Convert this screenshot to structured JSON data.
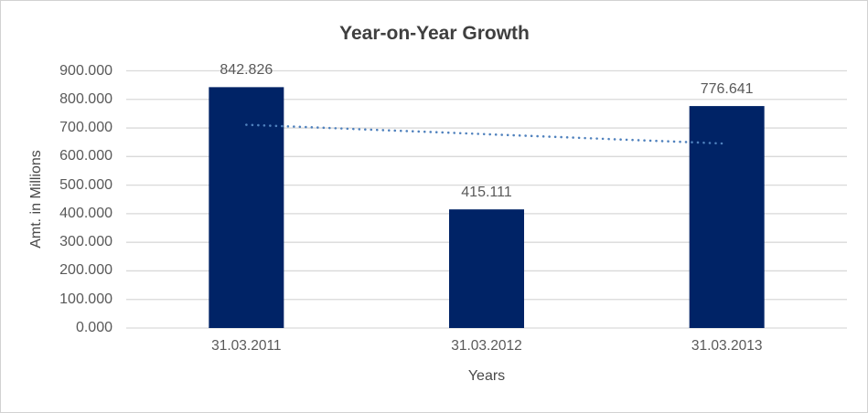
{
  "chart_data": {
    "type": "bar",
    "title": "Year-on-Year Growth",
    "xlabel": "Years",
    "ylabel": "Amt. in Millions",
    "categories": [
      "31.03.2011",
      "31.03.2012",
      "31.03.2013"
    ],
    "values": [
      842.826,
      415.111,
      776.641
    ],
    "data_labels": [
      "842.826",
      "415.111",
      "776.641"
    ],
    "ylim": [
      0,
      900
    ],
    "y_tick_step": 100,
    "y_tick_labels": [
      "0.000",
      "100.000",
      "200.000",
      "300.000",
      "400.000",
      "500.000",
      "600.000",
      "700.000",
      "800.000",
      "900.000"
    ],
    "grid": true,
    "legend": "none",
    "trendline": {
      "type": "linear",
      "style": "dotted"
    },
    "colors": {
      "bar": "#002366",
      "trendline": "#4f81bd",
      "gridline": "#d9d9d9",
      "axis_text": "#595959",
      "title_text": "#3f3f3f",
      "border": "#d2d2d2",
      "background": "#ffffff"
    }
  }
}
